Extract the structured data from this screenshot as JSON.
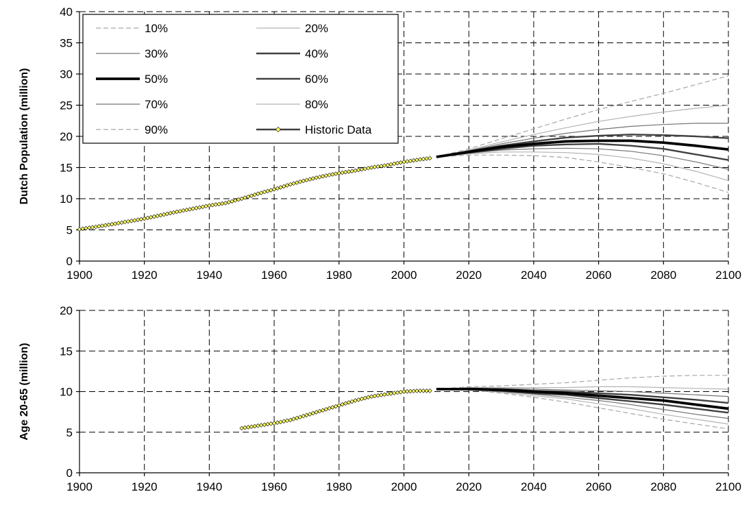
{
  "chart_data": [
    {
      "type": "line",
      "id": "population",
      "ylabel": "Dutch Population (million)",
      "xlabel": "",
      "xlim": [
        1900,
        2100
      ],
      "ylim": [
        0,
        40
      ],
      "xticks": [
        1900,
        1920,
        1940,
        1960,
        1980,
        2000,
        2020,
        2040,
        2060,
        2080,
        2100
      ],
      "yticks": [
        0,
        5,
        10,
        15,
        20,
        25,
        30,
        35,
        40
      ],
      "grid": "dashed",
      "legend_position": "top-left",
      "legend": [
        {
          "label": "10%",
          "series": "10%"
        },
        {
          "label": "20%",
          "series": "20%"
        },
        {
          "label": "30%",
          "series": "30%"
        },
        {
          "label": "40%",
          "series": "40%"
        },
        {
          "label": "50%",
          "series": "50%"
        },
        {
          "label": "60%",
          "series": "60%"
        },
        {
          "label": "70%",
          "series": "70%"
        },
        {
          "label": "80%",
          "series": "80%"
        },
        {
          "label": "90%",
          "series": "90%"
        },
        {
          "label": "Historic Data",
          "series": "Historic Data"
        }
      ],
      "series": [
        {
          "name": "Historic Data",
          "x": [
            1900,
            1910,
            1920,
            1930,
            1940,
            1945,
            1950,
            1955,
            1960,
            1965,
            1970,
            1975,
            1980,
            1985,
            1990,
            1995,
            2000,
            2005,
            2008
          ],
          "y": [
            5.1,
            5.9,
            6.8,
            7.9,
            8.9,
            9.3,
            10.0,
            10.8,
            11.5,
            12.3,
            13.0,
            13.6,
            14.1,
            14.5,
            15.0,
            15.4,
            15.9,
            16.3,
            16.5
          ]
        },
        {
          "name": "10%",
          "x": [
            2010,
            2020,
            2030,
            2040,
            2050,
            2060,
            2070,
            2080,
            2090,
            2100
          ],
          "y": [
            16.7,
            17.0,
            17.0,
            16.9,
            16.6,
            15.9,
            15.0,
            14.0,
            12.6,
            11.0
          ]
        },
        {
          "name": "20%",
          "x": [
            2010,
            2020,
            2030,
            2040,
            2050,
            2060,
            2070,
            2080,
            2090,
            2100
          ],
          "y": [
            16.7,
            17.2,
            17.5,
            17.5,
            17.4,
            17.1,
            16.5,
            15.6,
            14.4,
            12.9
          ]
        },
        {
          "name": "30%",
          "x": [
            2010,
            2020,
            2030,
            2040,
            2050,
            2060,
            2070,
            2080,
            2090,
            2100
          ],
          "y": [
            16.7,
            17.3,
            17.8,
            18.0,
            18.1,
            18.0,
            17.6,
            16.9,
            15.9,
            14.7
          ]
        },
        {
          "name": "40%",
          "x": [
            2010,
            2020,
            2030,
            2040,
            2050,
            2060,
            2070,
            2080,
            2090,
            2100
          ],
          "y": [
            16.7,
            17.4,
            18.0,
            18.5,
            18.7,
            18.8,
            18.5,
            18.0,
            17.1,
            16.2
          ]
        },
        {
          "name": "50%",
          "x": [
            2010,
            2020,
            2030,
            2040,
            2050,
            2060,
            2070,
            2080,
            2090,
            2100
          ],
          "y": [
            16.7,
            17.5,
            18.3,
            18.8,
            19.2,
            19.3,
            19.3,
            19.0,
            18.5,
            17.9
          ]
        },
        {
          "name": "60%",
          "x": [
            2010,
            2020,
            2030,
            2040,
            2050,
            2060,
            2070,
            2080,
            2090,
            2100
          ],
          "y": [
            16.7,
            17.6,
            18.5,
            19.2,
            19.8,
            20.1,
            20.3,
            20.2,
            20.0,
            19.7
          ]
        },
        {
          "name": "70%",
          "x": [
            2010,
            2020,
            2030,
            2040,
            2050,
            2060,
            2070,
            2080,
            2090,
            2100
          ],
          "y": [
            16.7,
            17.7,
            18.8,
            19.7,
            20.5,
            21.1,
            21.6,
            21.9,
            22.1,
            22.1
          ]
        },
        {
          "name": "80%",
          "x": [
            2010,
            2020,
            2030,
            2040,
            2050,
            2060,
            2070,
            2080,
            2090,
            2100
          ],
          "y": [
            16.7,
            17.8,
            19.1,
            20.3,
            21.4,
            22.4,
            23.2,
            23.9,
            24.5,
            25.0
          ]
        },
        {
          "name": "90%",
          "x": [
            2010,
            2020,
            2030,
            2040,
            2050,
            2060,
            2070,
            2080,
            2090,
            2100
          ],
          "y": [
            16.7,
            18.0,
            19.6,
            21.2,
            22.8,
            24.3,
            25.6,
            26.9,
            28.3,
            29.7
          ]
        }
      ]
    },
    {
      "type": "line",
      "id": "working-age",
      "ylabel": "Age 20-65 (million)",
      "xlabel": "",
      "xlim": [
        1900,
        2100
      ],
      "ylim": [
        0,
        20
      ],
      "xticks": [
        1900,
        1920,
        1940,
        1960,
        1980,
        2000,
        2020,
        2040,
        2060,
        2080,
        2100
      ],
      "yticks": [
        0,
        5,
        10,
        15,
        20
      ],
      "grid": "dashed",
      "series": [
        {
          "name": "Historic Data",
          "x": [
            1950,
            1955,
            1960,
            1965,
            1970,
            1975,
            1980,
            1985,
            1990,
            1995,
            2000,
            2005,
            2008
          ],
          "y": [
            5.5,
            5.8,
            6.1,
            6.5,
            7.1,
            7.7,
            8.3,
            8.9,
            9.4,
            9.7,
            10.0,
            10.1,
            10.1
          ]
        },
        {
          "name": "10%",
          "x": [
            2010,
            2020,
            2030,
            2040,
            2050,
            2060,
            2070,
            2080,
            2090,
            2100
          ],
          "y": [
            10.3,
            10.2,
            9.8,
            9.3,
            8.7,
            8.0,
            7.3,
            6.6,
            6.0,
            5.4
          ]
        },
        {
          "name": "20%",
          "x": [
            2010,
            2020,
            2030,
            2040,
            2050,
            2060,
            2070,
            2080,
            2090,
            2100
          ],
          "y": [
            10.3,
            10.2,
            9.9,
            9.5,
            9.1,
            8.5,
            7.9,
            7.2,
            6.6,
            6.0
          ]
        },
        {
          "name": "30%",
          "x": [
            2010,
            2020,
            2030,
            2040,
            2050,
            2060,
            2070,
            2080,
            2090,
            2100
          ],
          "y": [
            10.3,
            10.3,
            10.0,
            9.7,
            9.3,
            8.9,
            8.4,
            7.8,
            7.2,
            6.7
          ]
        },
        {
          "name": "40%",
          "x": [
            2010,
            2020,
            2030,
            2040,
            2050,
            2060,
            2070,
            2080,
            2090,
            2100
          ],
          "y": [
            10.3,
            10.3,
            10.1,
            9.8,
            9.6,
            9.2,
            8.8,
            8.4,
            7.9,
            7.4
          ]
        },
        {
          "name": "50%",
          "x": [
            2010,
            2020,
            2030,
            2040,
            2050,
            2060,
            2070,
            2080,
            2090,
            2100
          ],
          "y": [
            10.3,
            10.3,
            10.2,
            10.0,
            9.8,
            9.5,
            9.2,
            8.9,
            8.4,
            7.9
          ]
        },
        {
          "name": "60%",
          "x": [
            2010,
            2020,
            2030,
            2040,
            2050,
            2060,
            2070,
            2080,
            2090,
            2100
          ],
          "y": [
            10.3,
            10.4,
            10.3,
            10.1,
            10.0,
            9.8,
            9.6,
            9.3,
            9.0,
            8.6
          ]
        },
        {
          "name": "70%",
          "x": [
            2010,
            2020,
            2030,
            2040,
            2050,
            2060,
            2070,
            2080,
            2090,
            2100
          ],
          "y": [
            10.3,
            10.4,
            10.4,
            10.3,
            10.2,
            10.1,
            10.0,
            9.8,
            9.6,
            9.4
          ]
        },
        {
          "name": "80%",
          "x": [
            2010,
            2020,
            2030,
            2040,
            2050,
            2060,
            2070,
            2080,
            2090,
            2100
          ],
          "y": [
            10.3,
            10.5,
            10.5,
            10.5,
            10.5,
            10.6,
            10.6,
            10.5,
            10.4,
            10.3
          ]
        },
        {
          "name": "90%",
          "x": [
            2010,
            2020,
            2030,
            2040,
            2050,
            2060,
            2070,
            2080,
            2090,
            2100
          ],
          "y": [
            10.3,
            10.6,
            10.7,
            10.9,
            11.1,
            11.4,
            11.7,
            11.9,
            12.0,
            12.0
          ]
        }
      ]
    }
  ],
  "styles": {
    "10%": {
      "color": "#a6a6a6",
      "dash": true,
      "weight": "thin"
    },
    "20%": {
      "color": "#b3b3b3",
      "dash": false,
      "weight": "thin"
    },
    "30%": {
      "color": "#737373",
      "dash": false,
      "weight": "thin"
    },
    "40%": {
      "color": "#404040",
      "dash": false,
      "weight": "medium"
    },
    "50%": {
      "color": "#000000",
      "dash": false,
      "weight": "thick"
    },
    "60%": {
      "color": "#404040",
      "dash": false,
      "weight": "medium"
    },
    "70%": {
      "color": "#737373",
      "dash": false,
      "weight": "thin"
    },
    "80%": {
      "color": "#b3b3b3",
      "dash": false,
      "weight": "thin"
    },
    "90%": {
      "color": "#a6a6a6",
      "dash": true,
      "weight": "thin"
    },
    "Historic Data": {
      "color": "#404040",
      "marker_fill": "#ffff66",
      "marker_stroke": "#000000",
      "weight": "medium"
    }
  }
}
